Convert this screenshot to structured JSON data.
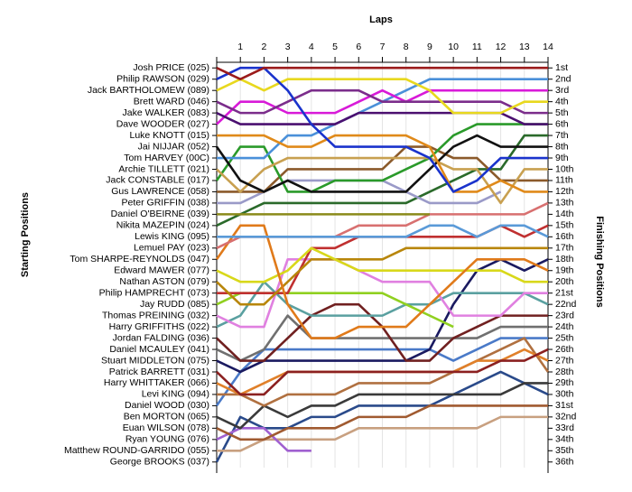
{
  "chart_data": {
    "type": "bump",
    "title": "Laps",
    "y_label": "Starting Positions",
    "y2_label": "Finishing Positions",
    "x": [
      0,
      1,
      2,
      3,
      4,
      5,
      6,
      7,
      8,
      9,
      10,
      11,
      12,
      13,
      14
    ],
    "xlim": [
      0,
      14
    ],
    "xticks": [
      1,
      2,
      3,
      4,
      5,
      6,
      7,
      8,
      9,
      10,
      11,
      12,
      13,
      14
    ],
    "ylim": [
      36.5,
      0.5
    ],
    "yticks": [
      1,
      2,
      3,
      4,
      5,
      6,
      7,
      8,
      9,
      10,
      11,
      12,
      13,
      14,
      15,
      16,
      17,
      18,
      19,
      20,
      21,
      22,
      23,
      24,
      25,
      26,
      27,
      28,
      29,
      30,
      31,
      32,
      33,
      34,
      35,
      36
    ],
    "grid": true,
    "finishing_labels": [
      "1st",
      "2nd",
      "3rd",
      "4th",
      "5th",
      "6th",
      "7th",
      "8th",
      "9th",
      "10th",
      "11th",
      "12th",
      "13th",
      "14th",
      "15th",
      "16th",
      "17th",
      "18th",
      "19th",
      "20th",
      "21st",
      "22nd",
      "23rd",
      "24th",
      "25th",
      "26th",
      "27th",
      "28th",
      "29th",
      "30th",
      "31st",
      "32nd",
      "33rd",
      "34th",
      "35th",
      "36th"
    ],
    "series": [
      {
        "name": "Josh PRICE (025)",
        "color": "#9b1b1b",
        "values": [
          1,
          2,
          1,
          1,
          1,
          1,
          1,
          1,
          1,
          1,
          1,
          1,
          1,
          1,
          1
        ]
      },
      {
        "name": "Philip RAWSON (029)",
        "color": "#1a33cc",
        "values": [
          2,
          1,
          1,
          3,
          6,
          8,
          8,
          8,
          8,
          9,
          12,
          11,
          9,
          9,
          9
        ]
      },
      {
        "name": "Jack BARTHOLOMEW (089)",
        "color": "#e8d81e",
        "values": [
          3,
          2,
          3,
          2,
          2,
          2,
          2,
          2,
          2,
          3,
          5,
          5,
          5,
          4,
          4
        ]
      },
      {
        "name": "Brett WARD (046)",
        "color": "#7b2d8b",
        "values": [
          4,
          5,
          5,
          4,
          3,
          3,
          3,
          4,
          4,
          4,
          4,
          4,
          4,
          5,
          5
        ]
      },
      {
        "name": "Jake WALKER (083)",
        "color": "#4b1070",
        "values": [
          5,
          6,
          6,
          6,
          6,
          6,
          5,
          5,
          5,
          5,
          5,
          5,
          5,
          6,
          6
        ]
      },
      {
        "name": "Dave WOODER (027)",
        "color": "#d81ad8",
        "values": [
          6,
          4,
          4,
          5,
          5,
          5,
          4,
          3,
          4,
          3,
          3,
          3,
          3,
          3,
          3
        ]
      },
      {
        "name": "Luke KNOTT (015)",
        "color": "#e08a1a",
        "values": [
          7,
          7,
          7,
          8,
          8,
          7,
          7,
          7,
          7,
          8,
          12,
          12,
          11,
          12,
          12
        ]
      },
      {
        "name": "Jai NIJJAR (052)",
        "color": "#111111",
        "values": [
          8,
          11,
          12,
          11,
          12,
          12,
          12,
          12,
          12,
          10,
          8,
          7,
          8,
          8,
          8
        ]
      },
      {
        "name": "Tom HARVEY (00C)",
        "color": "#4a90d9",
        "values": [
          9,
          9,
          9,
          7,
          7,
          6,
          5,
          4,
          3,
          2,
          2,
          2,
          2,
          2,
          2
        ]
      },
      {
        "name": "Archie TILLETT (021)",
        "color": "#c8a050",
        "values": [
          10,
          12,
          10,
          9,
          9,
          9,
          9,
          9,
          9,
          9,
          10,
          10,
          13,
          10,
          10
        ]
      },
      {
        "name": "Jack CONSTABLE (017)",
        "color": "#2a9a2a",
        "values": [
          11,
          8,
          8,
          12,
          12,
          11,
          11,
          11,
          10,
          9,
          7,
          6,
          6,
          6,
          6
        ]
      },
      {
        "name": "Gus LAWRENCE (058)",
        "color": "#8b5a2b",
        "values": [
          12,
          12,
          12,
          10,
          10,
          10,
          10,
          10,
          8,
          8,
          9,
          9,
          11,
          11,
          11
        ]
      },
      {
        "name": "Peter GRIFFIN (038)",
        "color": "#9a9ac8",
        "values": [
          13,
          13,
          12,
          11,
          11,
          11,
          11,
          11,
          12,
          13,
          13,
          13,
          12,
          null,
          null
        ]
      },
      {
        "name": "Daniel O'BEIRNE (039)",
        "color": "#8a8a1a",
        "values": [
          14,
          14,
          14,
          14,
          14,
          14,
          14,
          14,
          14,
          14,
          null,
          null,
          null,
          null,
          null
        ]
      },
      {
        "name": "Nikita MAZEPIN (024)",
        "color": "#2a6a2a",
        "values": [
          15,
          14,
          13,
          13,
          13,
          13,
          13,
          13,
          13,
          12,
          11,
          10,
          10,
          7,
          7
        ]
      },
      {
        "name": "Lewis KING (095)",
        "color": "#5a9ad8",
        "values": [
          16,
          16,
          16,
          16,
          16,
          16,
          16,
          16,
          16,
          15,
          15,
          16,
          15,
          15,
          16
        ]
      },
      {
        "name": "Lemuel PAY (023)",
        "color": "#d87070",
        "values": [
          17,
          16,
          16,
          16,
          16,
          16,
          15,
          15,
          15,
          14,
          14,
          14,
          14,
          14,
          13
        ]
      },
      {
        "name": "Tom SHARPE-REYNOLDS (047)",
        "color": "#e07a1a",
        "values": [
          18,
          15,
          15,
          22,
          25,
          25,
          24,
          24,
          24,
          22,
          20,
          18,
          18,
          18,
          19
        ]
      },
      {
        "name": "Edward MAWER (077)",
        "color": "#d8d81a",
        "values": [
          19,
          20,
          20,
          19,
          17,
          18,
          19,
          19,
          19,
          19,
          19,
          19,
          19,
          20,
          20
        ]
      },
      {
        "name": "Nathan ASTON (079)",
        "color": "#b8860b",
        "values": [
          20,
          22,
          22,
          20,
          18,
          18,
          18,
          18,
          17,
          17,
          17,
          17,
          17,
          17,
          17
        ]
      },
      {
        "name": "Philip HAMPRECHT (073)",
        "color": "#c03030",
        "values": [
          21,
          21,
          21,
          21,
          17,
          17,
          16,
          16,
          16,
          16,
          16,
          16,
          15,
          16,
          15
        ]
      },
      {
        "name": "Jay RUDD (085)",
        "color": "#90d020",
        "values": [
          22,
          21,
          21,
          21,
          21,
          21,
          21,
          21,
          22,
          23,
          24,
          null,
          null,
          null,
          null
        ]
      },
      {
        "name": "Thomas PREINING (032)",
        "color": "#e080e0",
        "values": [
          23,
          24,
          24,
          18,
          18,
          18,
          19,
          20,
          20,
          20,
          23,
          23,
          23,
          21,
          21
        ]
      },
      {
        "name": "Harry GRIFFITHS (022)",
        "color": "#5aa0a0",
        "values": [
          24,
          23,
          20,
          22,
          23,
          23,
          23,
          23,
          22,
          22,
          21,
          21,
          21,
          21,
          22
        ]
      },
      {
        "name": "Jordan FALDING (036)",
        "color": "#702020",
        "values": [
          25,
          27,
          27,
          25,
          23,
          22,
          22,
          24,
          27,
          27,
          25,
          24,
          23,
          23,
          23
        ]
      },
      {
        "name": "Daniel MCAULEY (041)",
        "color": "#707070",
        "values": [
          26,
          27,
          26,
          23,
          25,
          25,
          25,
          25,
          25,
          25,
          25,
          25,
          24,
          24,
          24
        ]
      },
      {
        "name": "Stuart MIDDLETON (075)",
        "color": "#1a1a60",
        "values": [
          27,
          28,
          27,
          27,
          27,
          27,
          27,
          27,
          27,
          26,
          22,
          19,
          18,
          19,
          18
        ]
      },
      {
        "name": "Patrick BARRETT (031)",
        "color": "#8b2020",
        "values": [
          28,
          30,
          30,
          28,
          28,
          28,
          28,
          28,
          28,
          28,
          28,
          28,
          27,
          27,
          26
        ]
      },
      {
        "name": "Harry WHITTAKER (066)",
        "color": "#e0802a",
        "values": [
          29,
          30,
          29,
          28,
          28,
          28,
          28,
          28,
          28,
          28,
          28,
          27,
          27,
          26,
          27
        ]
      },
      {
        "name": "Levi KING (094)",
        "color": "#b07040",
        "values": [
          30,
          30,
          31,
          30,
          30,
          30,
          29,
          29,
          29,
          29,
          28,
          27,
          26,
          25,
          28
        ]
      },
      {
        "name": "Daniel WOOD (030)",
        "color": "#4a7ac8",
        "values": [
          31,
          28,
          26,
          26,
          26,
          26,
          26,
          26,
          26,
          26,
          27,
          26,
          25,
          25,
          25
        ]
      },
      {
        "name": "Ben MORTON (065)",
        "color": "#3a3a3a",
        "values": [
          32,
          33,
          31,
          32,
          31,
          31,
          30,
          30,
          30,
          30,
          30,
          30,
          30,
          29,
          29
        ]
      },
      {
        "name": "Euan WILSON (078)",
        "color": "#a05a30",
        "values": [
          33,
          34,
          34,
          33,
          33,
          33,
          32,
          32,
          32,
          31,
          31,
          31,
          31,
          31,
          31
        ]
      },
      {
        "name": "Ryan YOUNG (076)",
        "color": "#a060d0",
        "values": [
          34,
          33,
          33,
          35,
          35,
          null,
          null,
          null,
          null,
          null,
          null,
          null,
          null,
          null,
          null
        ]
      },
      {
        "name": "Matthew ROUND-GARRIDO (055)",
        "color": "#c8a080",
        "values": [
          35,
          35,
          34,
          34,
          34,
          34,
          33,
          33,
          33,
          33,
          33,
          33,
          32,
          32,
          32
        ]
      },
      {
        "name": "George BROOKS (037)",
        "color": "#2a4a8a",
        "values": [
          36,
          32,
          33,
          33,
          32,
          32,
          31,
          31,
          31,
          31,
          30,
          29,
          28,
          29,
          30
        ]
      }
    ]
  }
}
